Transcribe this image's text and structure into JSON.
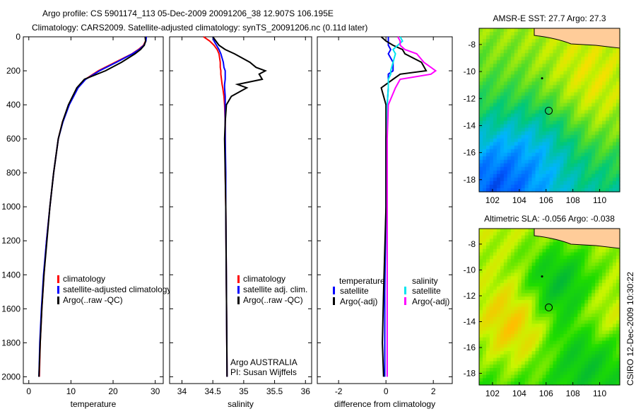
{
  "title_line1": "Argo profile: CS 5901174_113 05-Dec-2009 20091206_38 12.907S 106.195E",
  "title_line2": "Climatology: CARS2009. Satellite-adjusted climatology: synTS_20091206.nc (0.11d later)",
  "side_label": "CSIRO 12-Dec-2009 10:30:22",
  "colors": {
    "climatology": "#ff0000",
    "satellite": "#0000ff",
    "argo": "#000000",
    "sal_sat": "#00e5ee",
    "sal_argo": "#ff00ff"
  },
  "chart_data": [
    {
      "type": "line",
      "name": "temperature",
      "xlabel": "temperature",
      "ylabel": "",
      "xlim": [
        -1.3,
        31.9
      ],
      "ylim": [
        2040,
        0
      ],
      "xticks": [
        0,
        10,
        20,
        30
      ],
      "yticks": [
        0,
        200,
        400,
        600,
        800,
        1000,
        1200,
        1400,
        1600,
        1800,
        2000
      ],
      "legend": [
        "climatology",
        "satellite-adjusted climatology",
        "Argo(..raw -QC)"
      ],
      "legend_position": "bottom-right",
      "depth": [
        0,
        25,
        50,
        75,
        100,
        150,
        200,
        250,
        300,
        400,
        500,
        600,
        800,
        1000,
        1200,
        1400,
        1600,
        1800,
        2000
      ],
      "series": [
        {
          "name": "climatology",
          "values": [
            27.8,
            27.7,
            27.2,
            26,
            24.5,
            20.5,
            16.5,
            13.4,
            11.6,
            9.5,
            8,
            7,
            5.9,
            5,
            4.2,
            3.6,
            3.1,
            2.7,
            2.5
          ]
        },
        {
          "name": "satellite-adjusted climatology",
          "values": [
            27.9,
            27.8,
            27.3,
            26.2,
            24.6,
            20.8,
            16.8,
            13.5,
            11.7,
            9.6,
            8.1,
            7,
            5.9,
            5,
            4.2,
            3.5,
            3,
            2.6,
            2.4
          ]
        },
        {
          "name": "Argo(..raw -QC)",
          "values": [
            27.6,
            27.7,
            27.4,
            26.5,
            25.2,
            22,
            18.2,
            13.2,
            11.4,
            9.4,
            8,
            7,
            5.9,
            5,
            4.3,
            3.6,
            3.1,
            2.7,
            2.4
          ]
        }
      ]
    },
    {
      "type": "line",
      "name": "salinity",
      "xlabel": "salinity",
      "xlim": [
        33.8,
        36.1
      ],
      "ylim": [
        2040,
        0
      ],
      "xticks": [
        34,
        34.5,
        35,
        35.5,
        36
      ],
      "legend": [
        "climatology",
        "satellite adj. clim.",
        "Argo(..raw -QC)"
      ],
      "legend_position": "bottom-right",
      "annotation": [
        "Argo AUSTRALIA",
        "PI: Susan Wijffels"
      ],
      "depth": [
        0,
        25,
        50,
        75,
        100,
        150,
        180,
        200,
        220,
        250,
        280,
        300,
        350,
        400,
        500,
        600,
        800,
        1000,
        1500,
        2000
      ],
      "series": [
        {
          "name": "climatology",
          "values": [
            34.35,
            34.45,
            34.52,
            34.57,
            34.6,
            34.62,
            34.62,
            34.63,
            34.63,
            34.64,
            34.65,
            34.66,
            34.68,
            34.69,
            34.7,
            34.7,
            34.7,
            34.71,
            34.72,
            34.73
          ]
        },
        {
          "name": "satellite adj. clim.",
          "values": [
            34.5,
            34.52,
            34.56,
            34.6,
            34.63,
            34.67,
            34.68,
            34.7,
            34.7,
            34.7,
            34.69,
            34.69,
            34.7,
            34.7,
            34.7,
            34.7,
            34.71,
            34.71,
            34.72,
            34.73
          ]
        },
        {
          "name": "Argo(..raw -QC)",
          "values": [
            34.5,
            34.55,
            34.6,
            34.7,
            34.85,
            35.1,
            35.2,
            35.35,
            35.25,
            35.3,
            34.9,
            35.05,
            34.8,
            34.72,
            34.7,
            34.69,
            34.7,
            34.71,
            34.72,
            34.73
          ]
        }
      ]
    },
    {
      "type": "line",
      "name": "difference",
      "xlabel": "difference from climatology",
      "xlim": [
        -2.9,
        2.8
      ],
      "ylim": [
        2040,
        0
      ],
      "xticks": [
        -2,
        0,
        2
      ],
      "legend_groups": [
        {
          "title": "temperature",
          "items": [
            "satellite",
            "Argo(-adj)"
          ]
        },
        {
          "title": "salinity",
          "items": [
            "satellite",
            "Argo(-adj)"
          ]
        }
      ],
      "depth": [
        0,
        25,
        50,
        75,
        100,
        150,
        200,
        220,
        250,
        300,
        400,
        600,
        1000,
        1500,
        1800,
        2000
      ],
      "series": [
        {
          "name": "temperature satellite",
          "values": [
            0.1,
            0.1,
            0.1,
            0.2,
            0.1,
            0.3,
            0.3,
            0.1,
            0.1,
            0.1,
            0.05,
            0,
            0,
            -0.05,
            -0.05,
            -0.05
          ]
        },
        {
          "name": "temperature Argo(-adj)",
          "values": [
            -0.2,
            0,
            0.3,
            0.7,
            0.8,
            1.5,
            1.7,
            0.6,
            0.3,
            -0.2,
            0,
            0,
            0,
            -0.1,
            -0.15,
            -0.1
          ]
        },
        {
          "name": "salinity satellite",
          "values": [
            0.6,
            0.7,
            0.5,
            0.3,
            0.4,
            0.3,
            0.2,
            0.2,
            0.1,
            0.1,
            0.05,
            0.05,
            0.05,
            0.05,
            0.05,
            0.05
          ]
        },
        {
          "name": "salinity Argo(-adj)",
          "values": [
            0.5,
            0.6,
            0.6,
            0.8,
            1.3,
            1.6,
            2.1,
            1.9,
            0.6,
            0.4,
            0.1,
            0.05,
            0.05,
            0.05,
            0.05,
            0.05
          ]
        }
      ]
    },
    {
      "type": "heatmap",
      "name": "sst-map",
      "title": "AMSR-E SST: 27.7 Argo: 27.3",
      "xlim": [
        101,
        111.5
      ],
      "ylim": [
        -18.9,
        -6.8
      ],
      "xticks": [
        102,
        104,
        106,
        108,
        110
      ],
      "yticks": [
        -8,
        -10,
        -12,
        -14,
        -16,
        -18
      ]
    },
    {
      "type": "heatmap",
      "name": "sla-map",
      "title": "Altimetric SLA: -0.056 Argo: -0.038",
      "xlim": [
        101,
        111.5
      ],
      "ylim": [
        -18.9,
        -6.8
      ],
      "xticks": [
        102,
        104,
        106,
        108,
        110
      ],
      "yticks": [
        -8,
        -10,
        -12,
        -14,
        -16,
        -18
      ]
    }
  ]
}
